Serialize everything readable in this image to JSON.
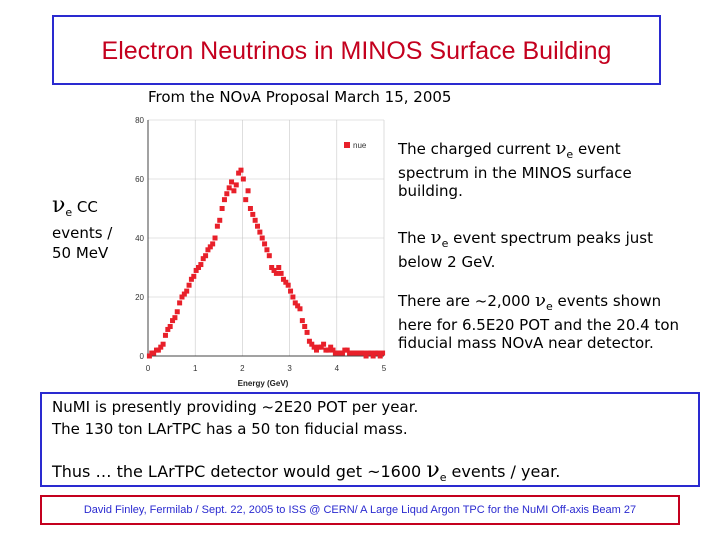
{
  "slide": {
    "title": "Electron Neutrinos in MINOS Surface Building",
    "subtitle": "From the NOνA Proposal March 15, 2005",
    "y_label": {
      "symbol": "ν",
      "subscript": "e",
      "line1_rest": " CC",
      "line2": "events /",
      "line3": "50 MeV"
    },
    "desc1": {
      "part1": "The charged current ",
      "symbol": "ν",
      "subscript": "e",
      "part2": " event spectrum in the MINOS surface building."
    },
    "desc2": {
      "part1": "The ",
      "symbol": "ν",
      "subscript": "e",
      "part2": " event spectrum peaks just below 2 GeV."
    },
    "desc3": {
      "part1": "There are ~2,000 ",
      "symbol": "ν",
      "subscript": "e",
      "part2": " events shown here for 6.5E20 POT and the 20.4 ton fiducial mass NOvA near detector."
    },
    "line1": "NuMI is presently providing ~2E20 POT per year.",
    "line2": "The 130 ton LArTPC has a 50 ton fiducial mass.",
    "line3": {
      "part1": "Thus … the LArTPC detector would get ~1600 ",
      "symbol": "ν",
      "subscript": "e",
      "part2": " events / year."
    },
    "footer": "David Finley, Fermilab / Sept. 22, 2005 to ISS @ CERN/ A Large Liqud Argon TPC for the NuMI Off-axis Beam 27"
  },
  "chart_data": {
    "type": "scatter",
    "xlabel": "Energy (GeV)",
    "ylabel": "",
    "xlim": [
      0,
      5
    ],
    "ylim": [
      0,
      80
    ],
    "xticks": [
      0,
      1,
      2,
      3,
      4,
      5
    ],
    "yticks": [
      0,
      20,
      40,
      60,
      80
    ],
    "grid": true,
    "legend": "top-right",
    "series": [
      {
        "name": "nue",
        "color": "#e8202a",
        "x": [
          0.03,
          0.08,
          0.12,
          0.18,
          0.22,
          0.27,
          0.32,
          0.37,
          0.42,
          0.47,
          0.52,
          0.57,
          0.62,
          0.67,
          0.72,
          0.77,
          0.82,
          0.87,
          0.92,
          0.97,
          1.02,
          1.07,
          1.12,
          1.17,
          1.22,
          1.27,
          1.32,
          1.37,
          1.42,
          1.47,
          1.52,
          1.57,
          1.62,
          1.67,
          1.72,
          1.77,
          1.82,
          1.87,
          1.92,
          1.97,
          2.02,
          2.07,
          2.12,
          2.17,
          2.22,
          2.27,
          2.32,
          2.37,
          2.42,
          2.47,
          2.52,
          2.57,
          2.62,
          2.67,
          2.72,
          2.77,
          2.82,
          2.87,
          2.92,
          2.97,
          3.02,
          3.07,
          3.12,
          3.17,
          3.22,
          3.27,
          3.32,
          3.37,
          3.42,
          3.47,
          3.52,
          3.57,
          3.62,
          3.67,
          3.72,
          3.77,
          3.82,
          3.87,
          3.92,
          3.97,
          4.02,
          4.07,
          4.12,
          4.17,
          4.22,
          4.27,
          4.32,
          4.37,
          4.42,
          4.47,
          4.52,
          4.57,
          4.62,
          4.67,
          4.72,
          4.77,
          4.82,
          4.87,
          4.92,
          4.97
        ],
        "y": [
          0,
          1,
          1,
          2,
          2,
          3,
          4,
          7,
          9,
          10,
          12,
          13,
          15,
          18,
          20,
          21,
          22,
          24,
          26,
          27,
          29,
          30,
          31,
          33,
          34,
          36,
          37,
          38,
          40,
          44,
          46,
          50,
          53,
          55,
          57,
          59,
          56,
          58,
          62,
          63,
          60,
          53,
          56,
          50,
          48,
          46,
          44,
          42,
          40,
          38,
          36,
          34,
          30,
          29,
          28,
          30,
          28,
          26,
          25,
          24,
          22,
          20,
          18,
          17,
          16,
          12,
          10,
          8,
          5,
          4,
          3,
          2,
          3,
          3,
          4,
          2,
          2,
          3,
          2,
          1,
          1,
          1,
          1,
          2,
          2,
          1,
          1,
          1,
          1,
          1,
          1,
          1,
          0,
          1,
          1,
          0,
          1,
          1,
          0,
          1
        ]
      }
    ]
  }
}
